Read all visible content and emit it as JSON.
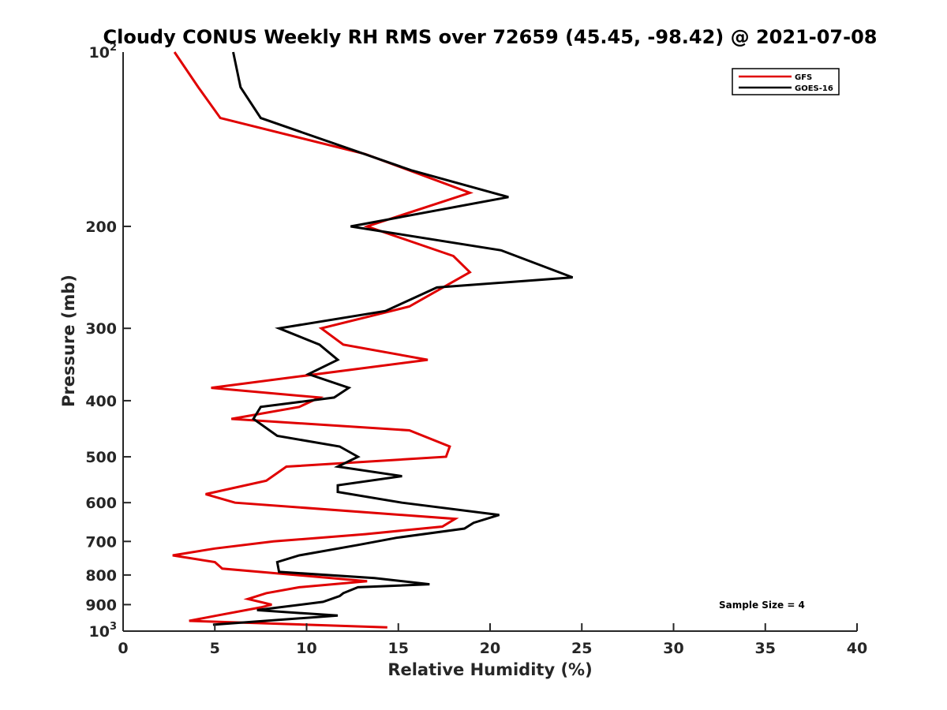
{
  "chart_data": {
    "type": "line",
    "title": "Cloudy CONUS Weekly RH RMS over 72659 (45.45, -98.42) @ 2021-07-08",
    "xlabel": "Relative Humidity (%)",
    "ylabel": "Pressure (mb)",
    "xlim": [
      0,
      40
    ],
    "ylim": [
      100,
      1000
    ],
    "y_scale": "log",
    "y_reversed": true,
    "grid": false,
    "legend_position": "top-right",
    "annotation": "Sample Size = 4",
    "x_ticks": [
      "0",
      "5",
      "10",
      "15",
      "20",
      "25",
      "30",
      "35",
      "40"
    ],
    "x_tick_values": [
      0,
      5,
      10,
      15,
      20,
      25,
      30,
      35,
      40
    ],
    "y_ticks": [
      {
        "value": 100,
        "base": "10",
        "exp": "2"
      },
      {
        "value": 200,
        "label": "200"
      },
      {
        "value": 300,
        "label": "300"
      },
      {
        "value": 400,
        "label": "400"
      },
      {
        "value": 500,
        "label": "500"
      },
      {
        "value": 600,
        "label": "600"
      },
      {
        "value": 700,
        "label": "700"
      },
      {
        "value": 800,
        "label": "800"
      },
      {
        "value": 900,
        "label": "900"
      },
      {
        "value": 1000,
        "base": "10",
        "exp": "3"
      }
    ],
    "series": [
      {
        "name": "GFS",
        "color": "#e00000",
        "points": [
          [
            2.8,
            100
          ],
          [
            4.1,
            115
          ],
          [
            5.3,
            130
          ],
          [
            13.2,
            150
          ],
          [
            18.9,
            175
          ],
          [
            13.3,
            200
          ],
          [
            18.0,
            225
          ],
          [
            18.9,
            240
          ],
          [
            15.6,
            275
          ],
          [
            10.8,
            300
          ],
          [
            12.0,
            320
          ],
          [
            16.6,
            340
          ],
          [
            4.8,
            380
          ],
          [
            10.7,
            395
          ],
          [
            9.6,
            410
          ],
          [
            5.9,
            430
          ],
          [
            15.6,
            450
          ],
          [
            17.8,
            480
          ],
          [
            17.6,
            500
          ],
          [
            8.9,
            520
          ],
          [
            7.8,
            550
          ],
          [
            4.5,
            580
          ],
          [
            6.1,
            600
          ],
          [
            18.1,
            640
          ],
          [
            17.4,
            660
          ],
          [
            13.2,
            680
          ],
          [
            8.2,
            700
          ],
          [
            5.0,
            720
          ],
          [
            2.7,
            740
          ],
          [
            5.0,
            760
          ],
          [
            5.4,
            780
          ],
          [
            13.3,
            820
          ],
          [
            9.6,
            840
          ],
          [
            7.8,
            860
          ],
          [
            6.8,
            880
          ],
          [
            8.1,
            900
          ],
          [
            7.5,
            910
          ],
          [
            5.1,
            940
          ],
          [
            3.6,
            960
          ],
          [
            14.4,
            985
          ]
        ]
      },
      {
        "name": "GOES-16",
        "color": "#000000",
        "points": [
          [
            6.0,
            100
          ],
          [
            6.4,
            115
          ],
          [
            7.5,
            130
          ],
          [
            15.7,
            160
          ],
          [
            21.0,
            178
          ],
          [
            12.4,
            200
          ],
          [
            20.6,
            220
          ],
          [
            24.5,
            245
          ],
          [
            17.1,
            255
          ],
          [
            14.3,
            280
          ],
          [
            8.5,
            300
          ],
          [
            10.7,
            320
          ],
          [
            11.7,
            340
          ],
          [
            10.1,
            360
          ],
          [
            12.3,
            380
          ],
          [
            11.5,
            395
          ],
          [
            7.5,
            410
          ],
          [
            7.1,
            430
          ],
          [
            8.4,
            460
          ],
          [
            11.8,
            480
          ],
          [
            12.8,
            500
          ],
          [
            11.7,
            520
          ],
          [
            15.2,
            540
          ],
          [
            11.7,
            560
          ],
          [
            11.7,
            575
          ],
          [
            15.2,
            600
          ],
          [
            20.5,
            630
          ],
          [
            19.1,
            650
          ],
          [
            18.6,
            665
          ],
          [
            14.9,
            690
          ],
          [
            12.8,
            710
          ],
          [
            9.6,
            740
          ],
          [
            8.4,
            760
          ],
          [
            8.5,
            790
          ],
          [
            13.7,
            810
          ],
          [
            16.7,
            830
          ],
          [
            12.8,
            840
          ],
          [
            12.0,
            860
          ],
          [
            11.8,
            870
          ],
          [
            10.9,
            890
          ],
          [
            7.3,
            920
          ],
          [
            11.7,
            940
          ],
          [
            4.9,
            975
          ]
        ]
      }
    ]
  }
}
